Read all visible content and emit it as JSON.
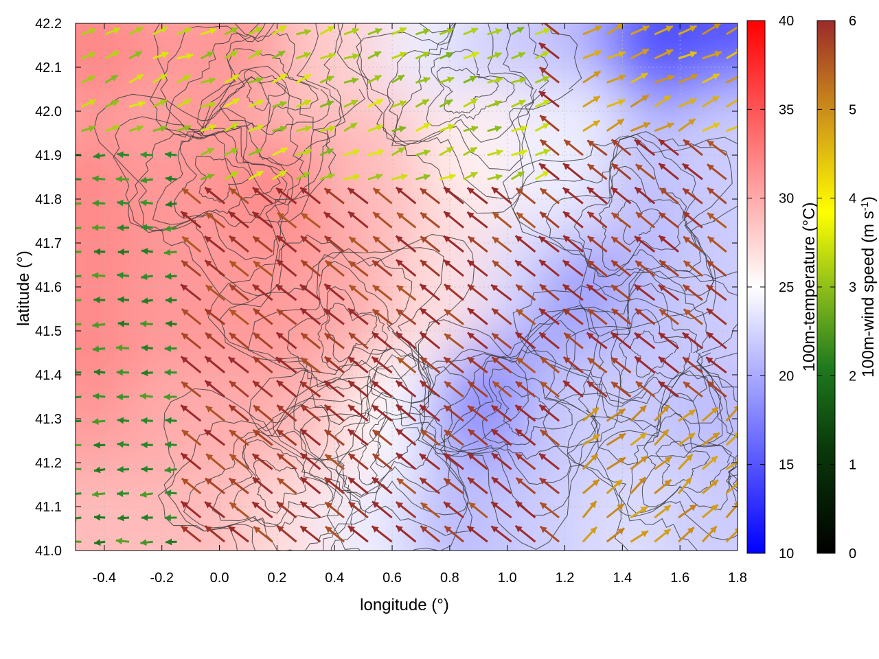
{
  "chart_data": {
    "type": "heatmap",
    "title": "",
    "xlabel": "longitude (°)",
    "ylabel": "latitude (°)",
    "xlim": [
      -0.5,
      1.8
    ],
    "ylim": [
      41.0,
      42.2
    ],
    "x_ticks": [
      "-0.4",
      "-0.2",
      "0.0",
      "0.2",
      "0.4",
      "0.6",
      "0.8",
      "1.0",
      "1.2",
      "1.4",
      "1.6",
      "1.8"
    ],
    "y_ticks": [
      "41.0",
      "41.1",
      "41.2",
      "41.3",
      "41.4",
      "41.5",
      "41.6",
      "41.7",
      "41.8",
      "41.9",
      "42.0",
      "42.1",
      "42.2"
    ],
    "x_tick_values": [
      -0.4,
      -0.2,
      0.0,
      0.2,
      0.4,
      0.6,
      0.8,
      1.0,
      1.2,
      1.4,
      1.6,
      1.8
    ],
    "y_tick_values": [
      41.0,
      41.1,
      41.2,
      41.3,
      41.4,
      41.5,
      41.6,
      41.7,
      41.8,
      41.9,
      42.0,
      42.1,
      42.2
    ],
    "grid": true,
    "temperature_colorbar": {
      "label": "100m-temperature (°C)",
      "range": [
        10,
        40
      ],
      "ticks": [
        "10",
        "15",
        "20",
        "25",
        "30",
        "35",
        "40"
      ],
      "tick_values": [
        10,
        15,
        20,
        25,
        30,
        35,
        40
      ],
      "colors": [
        "#0000ff",
        "#ffffff",
        "#ff0000"
      ]
    },
    "wind_colorbar": {
      "label_main": "100m-wind speed (m s",
      "label_sup": "-1",
      "label_end": ")",
      "range": [
        0,
        6
      ],
      "ticks": [
        "0",
        "1",
        "2",
        "3",
        "4",
        "5",
        "6"
      ],
      "tick_values": [
        0,
        1,
        2,
        3,
        4,
        5,
        6
      ],
      "colors": [
        "#000000",
        "#0a5a0a",
        "#2e8b2e",
        "#8fbf1a",
        "#ffff00",
        "#d4a017",
        "#c07a20",
        "#9b2a2a"
      ]
    },
    "temperature_field": [
      {
        "lon": -0.45,
        "lat": 42.15,
        "t": 32
      },
      {
        "lon": 0.0,
        "lat": 42.15,
        "t": 31
      },
      {
        "lon": 0.5,
        "lat": 42.15,
        "t": 28
      },
      {
        "lon": 0.8,
        "lat": 42.15,
        "t": 24
      },
      {
        "lon": 1.05,
        "lat": 42.1,
        "t": 22
      },
      {
        "lon": 1.35,
        "lat": 42.15,
        "t": 21
      },
      {
        "lon": 1.6,
        "lat": 42.17,
        "t": 14
      },
      {
        "lon": 1.75,
        "lat": 42.15,
        "t": 15
      },
      {
        "lon": -0.45,
        "lat": 41.8,
        "t": 32
      },
      {
        "lon": -0.1,
        "lat": 41.85,
        "t": 31
      },
      {
        "lon": 0.3,
        "lat": 41.8,
        "t": 32
      },
      {
        "lon": 0.6,
        "lat": 41.85,
        "t": 29
      },
      {
        "lon": 0.95,
        "lat": 41.9,
        "t": 26
      },
      {
        "lon": 1.25,
        "lat": 41.9,
        "t": 24
      },
      {
        "lon": 1.6,
        "lat": 41.85,
        "t": 21
      },
      {
        "lon": 1.8,
        "lat": 41.9,
        "t": 22
      },
      {
        "lon": -0.45,
        "lat": 41.5,
        "t": 32
      },
      {
        "lon": -0.1,
        "lat": 41.55,
        "t": 31
      },
      {
        "lon": 0.25,
        "lat": 41.55,
        "t": 31
      },
      {
        "lon": 0.55,
        "lat": 41.55,
        "t": 30
      },
      {
        "lon": 0.85,
        "lat": 41.6,
        "t": 27
      },
      {
        "lon": 1.15,
        "lat": 41.6,
        "t": 23
      },
      {
        "lon": 1.35,
        "lat": 41.55,
        "t": 19
      },
      {
        "lon": 1.6,
        "lat": 41.55,
        "t": 21
      },
      {
        "lon": 1.8,
        "lat": 41.6,
        "t": 22
      },
      {
        "lon": -0.45,
        "lat": 41.2,
        "t": 31
      },
      {
        "lon": -0.1,
        "lat": 41.2,
        "t": 30
      },
      {
        "lon": 0.2,
        "lat": 41.25,
        "t": 30
      },
      {
        "lon": 0.45,
        "lat": 41.25,
        "t": 29
      },
      {
        "lon": 0.7,
        "lat": 41.3,
        "t": 25
      },
      {
        "lon": 0.95,
        "lat": 41.3,
        "t": 20
      },
      {
        "lon": 1.05,
        "lat": 41.32,
        "t": 18
      },
      {
        "lon": 1.3,
        "lat": 41.3,
        "t": 22
      },
      {
        "lon": 1.6,
        "lat": 41.3,
        "t": 22
      },
      {
        "lon": 1.8,
        "lat": 41.25,
        "t": 21
      },
      {
        "lon": -0.45,
        "lat": 41.03,
        "t": 29
      },
      {
        "lon": 0.0,
        "lat": 41.05,
        "t": 29
      },
      {
        "lon": 0.35,
        "lat": 41.05,
        "t": 27
      },
      {
        "lon": 0.6,
        "lat": 41.03,
        "t": 24
      },
      {
        "lon": 0.9,
        "lat": 41.05,
        "t": 21
      },
      {
        "lon": 1.2,
        "lat": 41.05,
        "t": 22
      },
      {
        "lon": 1.5,
        "lat": 41.05,
        "t": 23
      },
      {
        "lon": 1.8,
        "lat": 41.05,
        "t": 22
      }
    ]
  }
}
